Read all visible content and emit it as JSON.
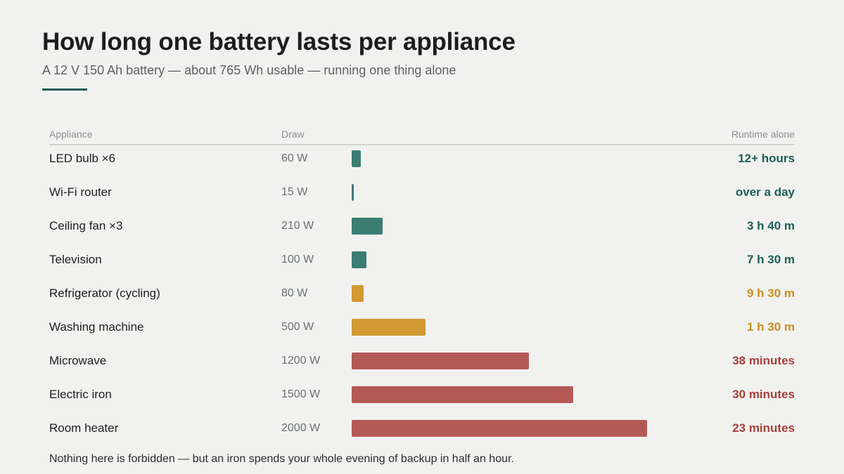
{
  "title": "How long one battery lasts per appliance",
  "subtitle": "A 12 V 150 Ah battery — about 765 Wh usable — running one thing alone",
  "footnote": "Nothing here is forbidden — but an iron spends your whole evening of backup in half an hour.",
  "colors": {
    "background": "#f1f2ef",
    "accent": "#1e5e55",
    "ok": "#3b7d72",
    "ok_text": "#1e5e55",
    "caution": "#d19a33",
    "caution_text": "#c98f1f",
    "heavy": "#b45a56",
    "heavy_text": "#a63f3a"
  },
  "chart_data": {
    "type": "bar",
    "orientation": "horizontal",
    "columns": {
      "appliance": "Appliance",
      "draw": "Draw",
      "runtime": "Runtime alone"
    },
    "max_watts": 2000,
    "rows": [
      {
        "appliance": "LED bulb ×6",
        "draw": "60 W",
        "watts": 60,
        "runtime": "12+ hours",
        "level": "ok"
      },
      {
        "appliance": "Wi-Fi router",
        "draw": "15 W",
        "watts": 15,
        "runtime": "over a day",
        "level": "ok"
      },
      {
        "appliance": "Ceiling fan ×3",
        "draw": "210 W",
        "watts": 210,
        "runtime": "3 h 40 m",
        "level": "ok"
      },
      {
        "appliance": "Television",
        "draw": "100 W",
        "watts": 100,
        "runtime": "7 h 30 m",
        "level": "ok"
      },
      {
        "appliance": "Refrigerator (cycling)",
        "draw": "80 W",
        "watts": 80,
        "runtime": "9 h 30 m",
        "level": "caution"
      },
      {
        "appliance": "Washing machine",
        "draw": "500 W",
        "watts": 500,
        "runtime": "1 h 30 m",
        "level": "caution"
      },
      {
        "appliance": "Microwave",
        "draw": "1200 W",
        "watts": 1200,
        "runtime": "38 minutes",
        "level": "heavy"
      },
      {
        "appliance": "Electric iron",
        "draw": "1500 W",
        "watts": 1500,
        "runtime": "30 minutes",
        "level": "heavy"
      },
      {
        "appliance": "Room heater",
        "draw": "2000 W",
        "watts": 2000,
        "runtime": "23 minutes",
        "level": "heavy"
      }
    ]
  }
}
